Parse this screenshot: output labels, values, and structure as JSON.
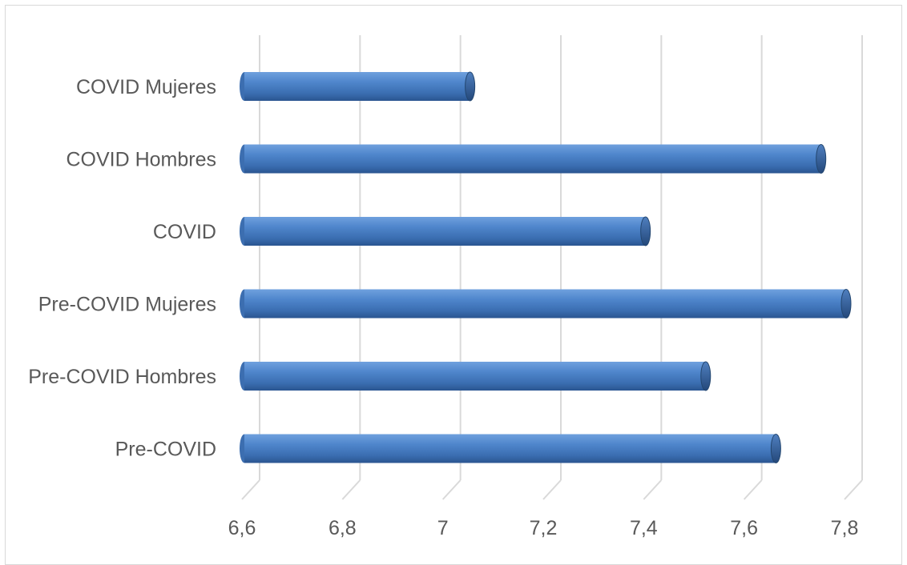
{
  "chart_data": {
    "type": "bar",
    "orientation": "horizontal",
    "style": "3d-cylinder",
    "categories": [
      "COVID Mujeres",
      "COVID Hombres",
      "COVID",
      "Pre-COVID Mujeres",
      "Pre-COVID Hombres",
      "Pre-COVID"
    ],
    "values": [
      7.05,
      7.75,
      7.4,
      7.8,
      7.52,
      7.66
    ],
    "xlim": [
      6.6,
      7.8
    ],
    "ticks": [
      "6,6",
      "6,8",
      "7",
      "7,2",
      "7,4",
      "7,6",
      "7,8"
    ],
    "tick_values": [
      6.6,
      6.8,
      7.0,
      7.2,
      7.4,
      7.6,
      7.8
    ],
    "title": "",
    "xlabel": "",
    "ylabel": "",
    "grid": true,
    "bar_color": "#4a7ebb"
  }
}
